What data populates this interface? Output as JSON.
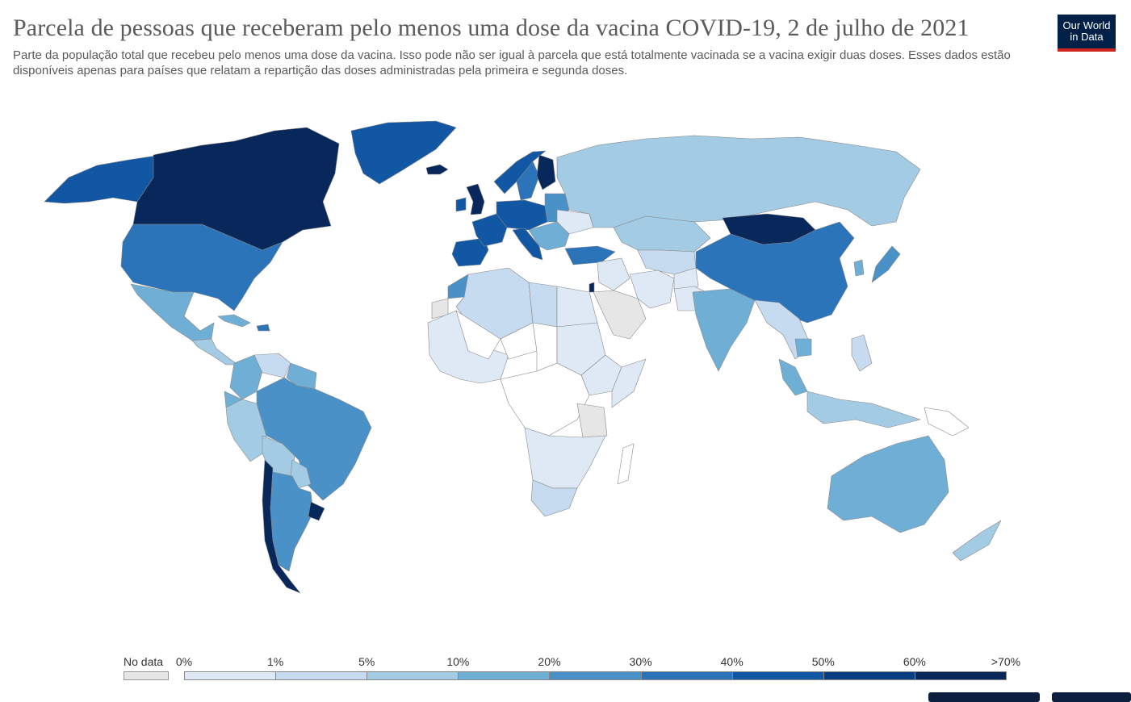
{
  "title": "Parcela de pessoas que receberam pelo menos uma dose da vacina COVID-19, 2 de julho de 2021",
  "subtitle": "Parte da população total que recebeu pelo menos uma dose da vacina. Isso pode não ser igual à parcela que está totalmente vacinada se a vacina exigir duas doses. Esses dados estão disponíveis apenas para países que relatam a repartição das doses administradas pela primeira e segunda doses.",
  "logo": {
    "line1": "Our World",
    "line2": "in Data"
  },
  "legend": {
    "no_data_label": "No data",
    "no_data_color": "#e6e6e6",
    "bins": [
      {
        "label": "0%",
        "color": "#ffffff"
      },
      {
        "label": "1%",
        "color": "#dfe9f5"
      },
      {
        "label": "5%",
        "color": "#c6dbef"
      },
      {
        "label": "10%",
        "color": "#a3cbe3"
      },
      {
        "label": "20%",
        "color": "#6fafd6"
      },
      {
        "label": "30%",
        "color": "#4a91c8"
      },
      {
        "label": "40%",
        "color": "#2b74ba"
      },
      {
        "label": "50%",
        "color": "#1257a3"
      },
      {
        "label": "60%",
        "color": "#083d82"
      },
      {
        "label": ">70%",
        "color": "#08275a"
      }
    ]
  },
  "map": {
    "border_color": "#888888",
    "ocean_color": "#ffffff",
    "regions": [
      {
        "name": "Canada",
        "color": "#08275a"
      },
      {
        "name": "Alaska",
        "color": "#1257a3"
      },
      {
        "name": "Greenland",
        "color": "#1257a3"
      },
      {
        "name": "Iceland",
        "color": "#08275a"
      },
      {
        "name": "United States",
        "color": "#2b74ba"
      },
      {
        "name": "Mexico",
        "color": "#6fafd6"
      },
      {
        "name": "Central America",
        "color": "#a3cbe3"
      },
      {
        "name": "Cuba",
        "color": "#6fafd6"
      },
      {
        "name": "Dominican Republic",
        "color": "#2b74ba"
      },
      {
        "name": "Colombia",
        "color": "#6fafd6"
      },
      {
        "name": "Venezuela",
        "color": "#c6dbef"
      },
      {
        "name": "Guyana",
        "color": "#6fafd6"
      },
      {
        "name": "Ecuador",
        "color": "#6fafd6"
      },
      {
        "name": "Peru",
        "color": "#a3cbe3"
      },
      {
        "name": "Brazil",
        "color": "#4a91c8"
      },
      {
        "name": "Bolivia",
        "color": "#a3cbe3"
      },
      {
        "name": "Paraguay",
        "color": "#a3cbe3"
      },
      {
        "name": "Chile",
        "color": "#08275a"
      },
      {
        "name": "Argentina",
        "color": "#4a91c8"
      },
      {
        "name": "Uruguay",
        "color": "#08275a"
      },
      {
        "name": "Western Sahara",
        "color": "#e6e6e6"
      },
      {
        "name": "Morocco",
        "color": "#4a91c8"
      },
      {
        "name": "Algeria",
        "color": "#c6dbef"
      },
      {
        "name": "Libya",
        "color": "#c6dbef"
      },
      {
        "name": "Egypt",
        "color": "#dfe9f5"
      },
      {
        "name": "West Africa",
        "color": "#dfe9f5"
      },
      {
        "name": "Mali",
        "color": "#ffffff"
      },
      {
        "name": "Niger",
        "color": "#ffffff"
      },
      {
        "name": "Chad",
        "color": "#ffffff"
      },
      {
        "name": "Sudan",
        "color": "#dfe9f5"
      },
      {
        "name": "Ethiopia",
        "color": "#dfe9f5"
      },
      {
        "name": "Somalia",
        "color": "#dfe9f5"
      },
      {
        "name": "Central Africa",
        "color": "#ffffff"
      },
      {
        "name": "Tanzania",
        "color": "#e6e6e6"
      },
      {
        "name": "Southern Africa",
        "color": "#dfe9f5"
      },
      {
        "name": "South Africa",
        "color": "#c6dbef"
      },
      {
        "name": "Madagascar",
        "color": "#ffffff"
      },
      {
        "name": "Iberia",
        "color": "#1257a3"
      },
      {
        "name": "France",
        "color": "#1257a3"
      },
      {
        "name": "United Kingdom",
        "color": "#08275a"
      },
      {
        "name": "Ireland",
        "color": "#1257a3"
      },
      {
        "name": "Norway",
        "color": "#1257a3"
      },
      {
        "name": "Sweden",
        "color": "#2b74ba"
      },
      {
        "name": "Finland",
        "color": "#08275a"
      },
      {
        "name": "Central Europe",
        "color": "#1257a3"
      },
      {
        "name": "Italy",
        "color": "#1257a3"
      },
      {
        "name": "Eastern Europe",
        "color": "#4a91c8"
      },
      {
        "name": "Ukraine",
        "color": "#dfe9f5"
      },
      {
        "name": "Balkans",
        "color": "#6fafd6"
      },
      {
        "name": "Turkey",
        "color": "#2b74ba"
      },
      {
        "name": "Russia",
        "color": "#a3cbe3"
      },
      {
        "name": "Kazakhstan",
        "color": "#a3cbe3"
      },
      {
        "name": "Central Asia",
        "color": "#c6dbef"
      },
      {
        "name": "Middle East",
        "color": "#dfe9f5"
      },
      {
        "name": "Saudi Arabia",
        "color": "#e6e6e6"
      },
      {
        "name": "Israel",
        "color": "#08275a"
      },
      {
        "name": "Iran",
        "color": "#dfe9f5"
      },
      {
        "name": "Afghanistan",
        "color": "#dfe9f5"
      },
      {
        "name": "Pakistan",
        "color": "#dfe9f5"
      },
      {
        "name": "India",
        "color": "#6fafd6"
      },
      {
        "name": "Mongolia",
        "color": "#08275a"
      },
      {
        "name": "China",
        "color": "#2b74ba"
      },
      {
        "name": "Southeast Asia",
        "color": "#c6dbef"
      },
      {
        "name": "Cambodia",
        "color": "#6fafd6"
      },
      {
        "name": "Malaysia",
        "color": "#6fafd6"
      },
      {
        "name": "Indonesia",
        "color": "#a3cbe3"
      },
      {
        "name": "Philippines",
        "color": "#c6dbef"
      },
      {
        "name": "Japan",
        "color": "#4a91c8"
      },
      {
        "name": "South Korea",
        "color": "#6fafd6"
      },
      {
        "name": "Papua New Guinea",
        "color": "#ffffff"
      },
      {
        "name": "Australia",
        "color": "#6fafd6"
      },
      {
        "name": "New Zealand",
        "color": "#a3cbe3"
      }
    ]
  }
}
